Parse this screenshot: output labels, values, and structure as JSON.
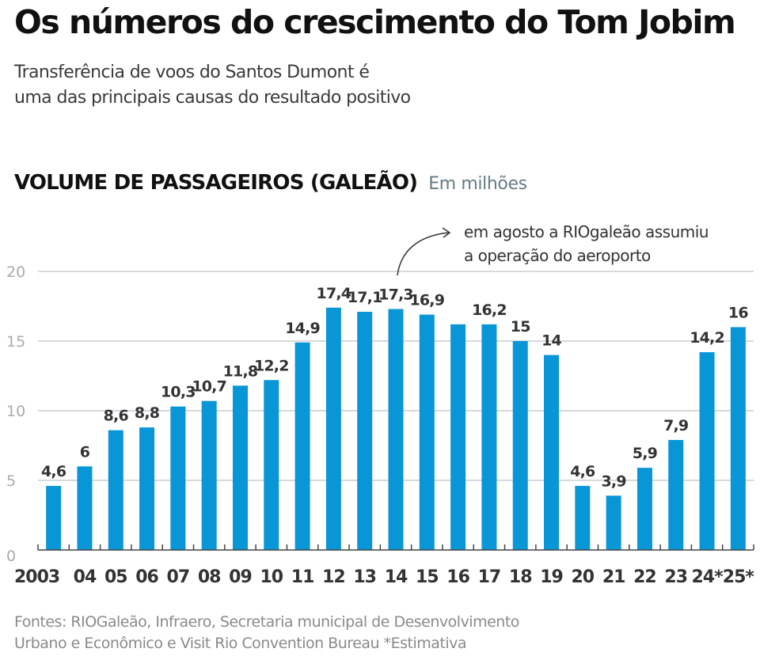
{
  "header": {
    "title": "Os números do crescimento do Tom Jobim",
    "subtitle_line1": "Transferência de voos do Santos Dumont é",
    "subtitle_line2": "uma das principais causas do resultado positivo"
  },
  "annotation": {
    "line1": "em agosto a RIOgaleão assumiu",
    "line2": "a operação do aeroporto"
  },
  "footer": {
    "source_line1": "Fontes: RIOGaleão, Infraero, Secretaria municipal de Desenvolvimento",
    "source_line2": "Urbano e Econômico e Visit Rio Convention Bureau    *Estimativa"
  },
  "colors": {
    "bar": "#0996d7",
    "highlight_label": "#0996d7",
    "label": "#333333",
    "grid": "#d5dadd"
  },
  "chart_data": {
    "type": "bar",
    "title": "VOLUME DE PASSAGEIROS (GALEÃO)",
    "unit": "Em milhões",
    "xlabel": "",
    "ylabel": "",
    "ylim": [
      0,
      20
    ],
    "yticks": [
      "0",
      "5",
      "10",
      "15",
      "20"
    ],
    "ytick_values": [
      0,
      5,
      10,
      15,
      20
    ],
    "grid": true,
    "categories": [
      "2003",
      "04",
      "05",
      "06",
      "07",
      "08",
      "09",
      "10",
      "11",
      "12",
      "13",
      "14",
      "15",
      "16",
      "17",
      "18",
      "19",
      "20",
      "21",
      "22",
      "23",
      "24*",
      "25*"
    ],
    "values": [
      4.6,
      6,
      8.6,
      8.8,
      10.3,
      10.7,
      11.8,
      12.2,
      14.9,
      17.4,
      17.1,
      17.3,
      16.9,
      16.2,
      16.2,
      15,
      14,
      4.6,
      3.9,
      5.9,
      7.9,
      14.2,
      16
    ],
    "labels": [
      "4,6",
      "6",
      "8,6",
      "8,8",
      "10,3",
      "10,7",
      "11,8",
      "12,2",
      "14,9",
      "17,4",
      "17,1",
      "17,3",
      "16,9",
      "",
      "16,2",
      "15",
      "14",
      "4,6",
      "3,9",
      "5,9",
      "7,9",
      "14,2",
      "16"
    ],
    "highlight_index": 11,
    "annotation_index": 11
  }
}
